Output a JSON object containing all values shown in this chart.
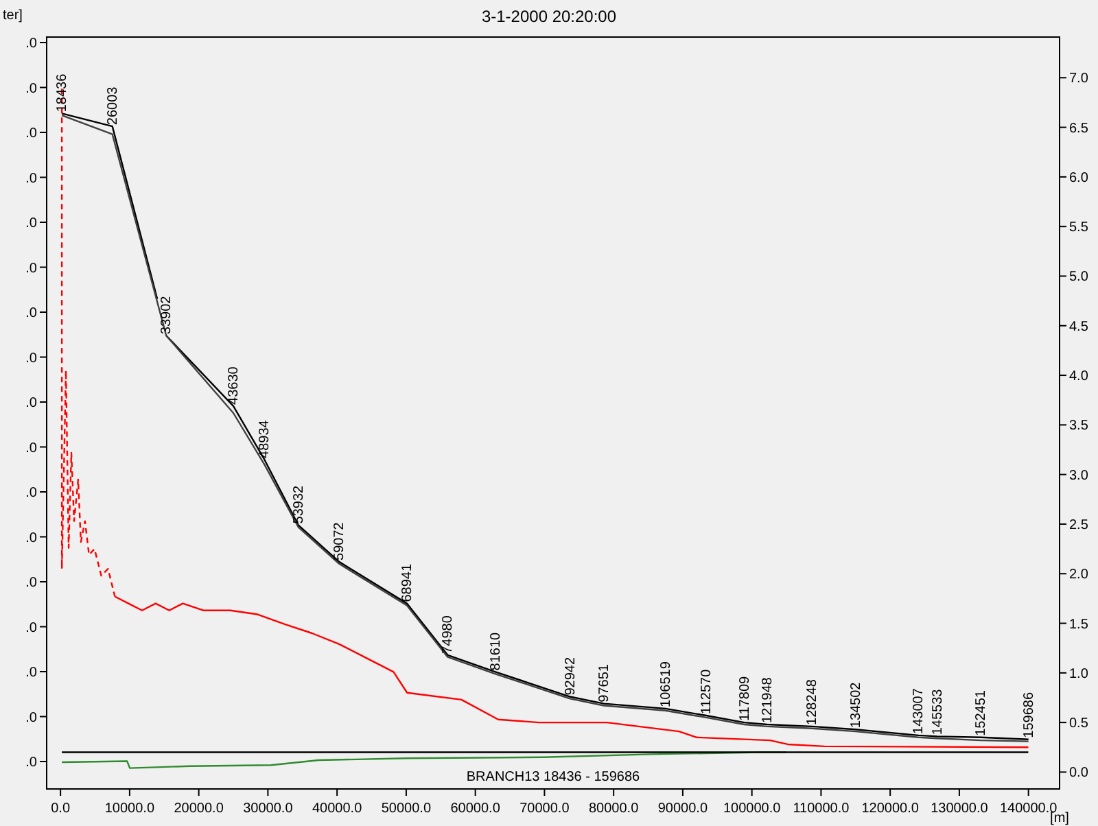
{
  "chart_data": {
    "type": "line",
    "title": "3-1-2000 20:20:00",
    "xlabel": "[m]",
    "ylabel": "ter]",
    "xlim": [
      -2000,
      144500
    ],
    "xticks": [
      {
        "value": 0,
        "label": "0.0"
      },
      {
        "value": 10000,
        "label": "10000.0"
      },
      {
        "value": 20000,
        "label": "20000.0"
      },
      {
        "value": 30000,
        "label": "30000.0"
      },
      {
        "value": 40000,
        "label": "40000.0"
      },
      {
        "value": 50000,
        "label": "50000.0"
      },
      {
        "value": 60000,
        "label": "60000.0"
      },
      {
        "value": 70000,
        "label": "70000.0"
      },
      {
        "value": 80000,
        "label": "80000.0"
      },
      {
        "value": 90000,
        "label": "90000.0"
      },
      {
        "value": 100000,
        "label": "100000.0"
      },
      {
        "value": 110000,
        "label": "110000.0"
      },
      {
        "value": 120000,
        "label": "120000.0"
      },
      {
        "value": 130000,
        "label": "130000.0"
      },
      {
        "value": 140000,
        "label": "140000.0"
      }
    ],
    "ylim": [
      -0.17,
      7.41
    ],
    "yticks": [
      {
        "value": 0,
        "label": "0.0"
      },
      {
        "value": 0.5,
        "label": "0.5"
      },
      {
        "value": 1,
        "label": "1.0"
      },
      {
        "value": 1.5,
        "label": "1.5"
      },
      {
        "value": 2,
        "label": "2.0"
      },
      {
        "value": 2.5,
        "label": "2.5"
      },
      {
        "value": 3,
        "label": "3.0"
      },
      {
        "value": 3.5,
        "label": "3.5"
      },
      {
        "value": 4,
        "label": "4.0"
      },
      {
        "value": 4.5,
        "label": "4.5"
      },
      {
        "value": 5,
        "label": "5.0"
      },
      {
        "value": 5.5,
        "label": "5.5"
      },
      {
        "value": 6,
        "label": "6.0"
      },
      {
        "value": 6.5,
        "label": "6.5"
      },
      {
        "value": 7,
        "label": "7.0"
      }
    ],
    "series": [
      {
        "color": "#000000",
        "line_style": "solid",
        "x": [
          200,
          7500,
          14000
        ],
        "values": [
          6.64,
          6.51,
          4.77
        ]
      },
      {
        "color": "#000000",
        "line_style": "solid",
        "x": [
          15300,
          25000,
          29500,
          34400,
          40300,
          50100,
          56000,
          62900,
          73700,
          78600,
          87500,
          93400,
          98900,
          102200,
          108700,
          115000,
          124100,
          126800,
          133100,
          140000
        ],
        "values": [
          4.4,
          3.69,
          3.15,
          2.49,
          2.12,
          1.7,
          1.18,
          1.01,
          0.76,
          0.69,
          0.64,
          0.57,
          0.5,
          0.48,
          0.46,
          0.43,
          0.37,
          0.36,
          0.35,
          0.33
        ]
      },
      {
        "color": "#404040",
        "line_style": "solid",
        "x": [
          200,
          7500,
          15300,
          25000,
          29500,
          34400,
          40300,
          50100,
          56000,
          62900,
          73700,
          78600,
          87500,
          93400,
          98900,
          102200,
          108700,
          115000,
          124100,
          126800,
          133100,
          140000
        ],
        "values": [
          6.62,
          6.43,
          4.4,
          3.62,
          3.1,
          2.47,
          2.1,
          1.68,
          1.16,
          0.99,
          0.74,
          0.67,
          0.62,
          0.55,
          0.48,
          0.46,
          0.44,
          0.41,
          0.35,
          0.34,
          0.32,
          0.31
        ]
      },
      {
        "color": "#ff0000",
        "line_style": "dashed",
        "x": [
          197,
          200,
          786,
          1180,
          1573,
          1966,
          2556,
          2949,
          3539,
          4129,
          4915,
          5898,
          6881,
          7864
        ],
        "values": [
          6.89,
          2.05,
          4.05,
          2.26,
          3.22,
          2.53,
          2.95,
          2.32,
          2.53,
          2.19,
          2.25,
          1.98,
          2.05,
          1.77
        ]
      },
      {
        "color": "#ff0000",
        "line_style": "solid",
        "x": [
          7864,
          9830,
          11796,
          13762,
          15728,
          17694,
          20643,
          24575,
          28507,
          32439,
          36371,
          40303,
          44235,
          48167,
          50133,
          57997,
          63305,
          69203,
          79033,
          89453,
          92009,
          102625,
          105181,
          110489,
          139979
        ],
        "values": [
          1.77,
          1.7,
          1.63,
          1.7,
          1.63,
          1.7,
          1.63,
          1.63,
          1.59,
          1.49,
          1.4,
          1.29,
          1.15,
          1.01,
          0.8,
          0.73,
          0.53,
          0.5,
          0.5,
          0.41,
          0.35,
          0.32,
          0.28,
          0.26,
          0.25
        ]
      },
      {
        "color": "#2e8b2e",
        "line_style": "solid",
        "x": [
          197,
          9633,
          10026,
          18677,
          30473,
          37354,
          50133,
          69794,
          85523,
          101250,
          105000
        ],
        "values": [
          0.1,
          0.11,
          0.04,
          0.06,
          0.07,
          0.12,
          0.14,
          0.15,
          0.18,
          0.2,
          0.2
        ]
      },
      {
        "color": "#000000",
        "line_style": "solid",
        "x": [
          197,
          139979
        ],
        "values": [
          0.2,
          0.2
        ]
      }
    ],
    "annotations": [
      {
        "text": "18436",
        "x": 200,
        "y": 6.64
      },
      {
        "text": "26003",
        "x": 7500,
        "y": 6.51
      },
      {
        "text": "33902",
        "x": 15300,
        "y": 4.4
      },
      {
        "text": "43630",
        "x": 25000,
        "y": 3.69
      },
      {
        "text": "48934",
        "x": 29500,
        "y": 3.15
      },
      {
        "text": "53932",
        "x": 34400,
        "y": 2.49
      },
      {
        "text": "59072",
        "x": 40300,
        "y": 2.12
      },
      {
        "text": "68941",
        "x": 50100,
        "y": 1.7
      },
      {
        "text": "74980",
        "x": 56000,
        "y": 1.18
      },
      {
        "text": "81610",
        "x": 62900,
        "y": 1.01
      },
      {
        "text": "92942",
        "x": 73700,
        "y": 0.76
      },
      {
        "text": "97651",
        "x": 78600,
        "y": 0.69
      },
      {
        "text": "106519",
        "x": 87500,
        "y": 0.64
      },
      {
        "text": "112570",
        "x": 93400,
        "y": 0.57
      },
      {
        "text": "117809",
        "x": 98900,
        "y": 0.5
      },
      {
        "text": "121948",
        "x": 102200,
        "y": 0.48
      },
      {
        "text": "128248",
        "x": 108700,
        "y": 0.46
      },
      {
        "text": "134502",
        "x": 115000,
        "y": 0.43
      },
      {
        "text": "143007",
        "x": 124100,
        "y": 0.37
      },
      {
        "text": "145533",
        "x": 126800,
        "y": 0.36
      },
      {
        "text": "152451",
        "x": 133100,
        "y": 0.35
      },
      {
        "text": "159686",
        "x": 140000,
        "y": 0.33
      },
      ".0",
      ".0",
      ".0",
      ".0",
      ".0",
      ".0",
      ".0",
      ".0",
      ".0",
      ".0",
      ".0",
      ".0",
      ".0",
      ".0",
      ".0",
      ".0",
      ".0",
      "BRANCH13  18436 - 159686"
    ]
  }
}
